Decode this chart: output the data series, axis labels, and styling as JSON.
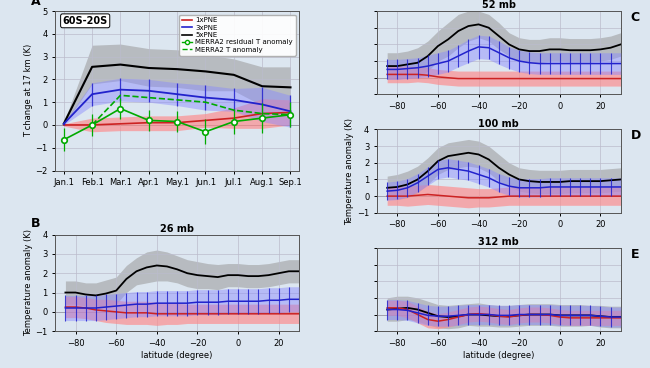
{
  "panel_A": {
    "title": "60S-20S",
    "ylabel": "T change at 17 km (K)",
    "xlim_labels": [
      "Jan.1",
      "Feb.1",
      "Mar.1",
      "Apr.1",
      "May.1",
      "Jun.1",
      "Jul.1",
      "Aug.1",
      "Sep.1"
    ],
    "ylim": [
      -2,
      5
    ],
    "yticks": [
      -2,
      -1,
      0,
      1,
      2,
      3,
      4,
      5
    ],
    "x": [
      0,
      1,
      2,
      3,
      4,
      5,
      6,
      7,
      8
    ],
    "gray_center": [
      0.05,
      2.55,
      2.65,
      2.5,
      2.45,
      2.35,
      2.2,
      1.7,
      1.65
    ],
    "gray_upper": [
      0.1,
      3.5,
      3.55,
      3.35,
      3.3,
      3.1,
      2.9,
      2.55,
      2.55
    ],
    "gray_lower": [
      0.0,
      1.8,
      1.95,
      1.7,
      1.65,
      1.5,
      1.5,
      0.85,
      0.7
    ],
    "blue_center": [
      0.05,
      1.35,
      1.55,
      1.5,
      1.35,
      1.2,
      1.1,
      0.9,
      0.6
    ],
    "blue_upper": [
      0.1,
      1.85,
      2.05,
      2.0,
      1.85,
      1.75,
      1.6,
      1.65,
      1.3
    ],
    "blue_lower": [
      0.0,
      0.85,
      1.05,
      1.0,
      0.85,
      0.65,
      0.6,
      0.15,
      -0.1
    ],
    "red_center": [
      0.0,
      0.0,
      0.05,
      0.1,
      0.1,
      0.2,
      0.3,
      0.5,
      0.55
    ],
    "red_upper": [
      0.05,
      0.3,
      0.35,
      0.4,
      0.4,
      0.5,
      0.75,
      1.15,
      1.1
    ],
    "red_lower": [
      -0.05,
      -0.3,
      -0.25,
      -0.25,
      -0.25,
      -0.1,
      -0.15,
      -0.15,
      0.0
    ],
    "green_solid_x": [
      0,
      1,
      2,
      3,
      4,
      5,
      6,
      7,
      8
    ],
    "green_solid_y": [
      -0.65,
      0.0,
      0.72,
      0.2,
      0.15,
      -0.3,
      0.15,
      0.3,
      0.45
    ],
    "green_solid_err": [
      0.5,
      0.5,
      0.45,
      0.45,
      0.45,
      0.55,
      0.55,
      0.65,
      0.55
    ],
    "green_dashed_x": [
      1,
      2,
      3,
      4,
      5,
      6,
      7,
      8
    ],
    "green_dashed_y": [
      0.0,
      1.3,
      1.2,
      1.1,
      1.0,
      0.65,
      0.5,
      0.45
    ]
  },
  "panel_B": {
    "title": "26 mb",
    "lat": [
      -85,
      -80,
      -75,
      -70,
      -65,
      -60,
      -55,
      -50,
      -45,
      -40,
      -35,
      -30,
      -25,
      -20,
      -15,
      -10,
      -5,
      0,
      5,
      10,
      15,
      20,
      25,
      30
    ],
    "gray_center": [
      1.0,
      1.0,
      0.9,
      0.85,
      0.95,
      1.1,
      1.7,
      2.1,
      2.3,
      2.4,
      2.35,
      2.2,
      2.0,
      1.9,
      1.85,
      1.8,
      1.9,
      1.9,
      1.85,
      1.85,
      1.9,
      2.0,
      2.1,
      2.1
    ],
    "gray_upper": [
      1.6,
      1.6,
      1.5,
      1.5,
      1.65,
      1.8,
      2.4,
      2.8,
      3.1,
      3.2,
      3.1,
      2.9,
      2.7,
      2.6,
      2.5,
      2.45,
      2.5,
      2.5,
      2.45,
      2.45,
      2.5,
      2.6,
      2.7,
      2.7
    ],
    "gray_lower": [
      0.4,
      0.4,
      0.3,
      0.2,
      0.25,
      0.4,
      1.0,
      1.4,
      1.5,
      1.6,
      1.6,
      1.5,
      1.3,
      1.2,
      1.2,
      1.15,
      1.3,
      1.3,
      1.25,
      1.25,
      1.3,
      1.4,
      1.5,
      1.5
    ],
    "blue_center": [
      0.2,
      0.2,
      0.2,
      0.2,
      0.25,
      0.3,
      0.35,
      0.4,
      0.4,
      0.45,
      0.45,
      0.45,
      0.45,
      0.5,
      0.5,
      0.5,
      0.55,
      0.55,
      0.55,
      0.55,
      0.6,
      0.6,
      0.65,
      0.65
    ],
    "blue_upper": [
      0.85,
      0.85,
      0.85,
      0.85,
      0.9,
      0.95,
      1.0,
      1.05,
      1.05,
      1.1,
      1.1,
      1.1,
      1.1,
      1.15,
      1.15,
      1.15,
      1.2,
      1.2,
      1.2,
      1.2,
      1.25,
      1.25,
      1.3,
      1.3
    ],
    "blue_lower": [
      -0.45,
      -0.45,
      -0.45,
      -0.45,
      -0.4,
      -0.35,
      -0.3,
      -0.25,
      -0.25,
      -0.2,
      -0.2,
      -0.2,
      -0.2,
      -0.15,
      -0.15,
      -0.15,
      -0.1,
      -0.1,
      -0.1,
      -0.1,
      -0.05,
      -0.05,
      0.0,
      0.0
    ],
    "red_center": [
      0.25,
      0.25,
      0.2,
      0.1,
      0.05,
      0.0,
      -0.05,
      -0.05,
      -0.05,
      -0.1,
      -0.1,
      -0.1,
      -0.1,
      -0.1,
      -0.1,
      -0.1,
      -0.1,
      -0.1,
      -0.1,
      -0.1,
      -0.1,
      -0.1,
      -0.1,
      -0.1
    ],
    "red_upper": [
      0.8,
      0.8,
      0.75,
      0.65,
      0.65,
      0.6,
      0.55,
      0.55,
      0.55,
      0.5,
      0.45,
      0.45,
      0.4,
      0.4,
      0.4,
      0.4,
      0.4,
      0.4,
      0.4,
      0.4,
      0.4,
      0.4,
      0.4,
      0.4
    ],
    "red_lower": [
      -0.3,
      -0.3,
      -0.35,
      -0.45,
      -0.55,
      -0.6,
      -0.65,
      -0.65,
      -0.65,
      -0.7,
      -0.65,
      -0.65,
      -0.6,
      -0.6,
      -0.6,
      -0.6,
      -0.6,
      -0.6,
      -0.6,
      -0.6,
      -0.6,
      -0.6,
      -0.6,
      -0.6
    ]
  },
  "panel_C": {
    "title": "52 mb",
    "lat": [
      -85,
      -80,
      -75,
      -70,
      -65,
      -60,
      -55,
      -50,
      -45,
      -40,
      -35,
      -30,
      -25,
      -20,
      -15,
      -10,
      -5,
      0,
      5,
      10,
      15,
      20,
      25,
      30
    ],
    "gray_center": [
      0.7,
      0.7,
      0.8,
      0.9,
      1.3,
      1.9,
      2.3,
      2.8,
      3.1,
      3.2,
      3.0,
      2.5,
      2.0,
      1.7,
      1.6,
      1.6,
      1.7,
      1.7,
      1.65,
      1.65,
      1.65,
      1.7,
      1.8,
      2.0
    ],
    "gray_upper": [
      1.5,
      1.5,
      1.6,
      1.8,
      2.2,
      2.8,
      3.3,
      3.8,
      4.0,
      4.0,
      3.8,
      3.3,
      2.7,
      2.4,
      2.3,
      2.3,
      2.4,
      2.4,
      2.35,
      2.35,
      2.35,
      2.4,
      2.5,
      2.7
    ],
    "gray_lower": [
      -0.1,
      -0.1,
      0.0,
      0.0,
      0.4,
      1.0,
      1.3,
      1.8,
      2.2,
      2.4,
      2.2,
      1.7,
      1.3,
      1.0,
      0.9,
      0.9,
      1.0,
      1.0,
      0.95,
      0.95,
      0.95,
      1.0,
      1.1,
      1.3
    ],
    "blue_center": [
      0.5,
      0.5,
      0.55,
      0.6,
      0.7,
      0.85,
      1.0,
      1.3,
      1.6,
      1.85,
      1.8,
      1.5,
      1.2,
      1.0,
      0.9,
      0.85,
      0.85,
      0.85,
      0.85,
      0.85,
      0.85,
      0.85,
      0.85,
      0.85
    ],
    "blue_upper": [
      1.1,
      1.1,
      1.15,
      1.2,
      1.35,
      1.5,
      1.65,
      1.95,
      2.3,
      2.55,
      2.5,
      2.2,
      1.85,
      1.65,
      1.55,
      1.5,
      1.5,
      1.5,
      1.5,
      1.5,
      1.5,
      1.5,
      1.5,
      1.5
    ],
    "blue_lower": [
      -0.1,
      -0.1,
      -0.05,
      0.0,
      0.05,
      0.2,
      0.35,
      0.65,
      0.9,
      1.15,
      1.1,
      0.8,
      0.55,
      0.35,
      0.25,
      0.2,
      0.2,
      0.2,
      0.2,
      0.2,
      0.2,
      0.2,
      0.2,
      0.2
    ],
    "red_center": [
      0.2,
      0.2,
      0.2,
      0.2,
      0.15,
      0.05,
      0.0,
      -0.05,
      -0.05,
      -0.05,
      -0.05,
      -0.05,
      -0.05,
      -0.05,
      -0.05,
      -0.05,
      -0.05,
      -0.05,
      -0.05,
      -0.05,
      -0.05,
      -0.05,
      -0.05,
      -0.05
    ],
    "red_upper": [
      0.7,
      0.7,
      0.7,
      0.65,
      0.6,
      0.5,
      0.45,
      0.4,
      0.4,
      0.4,
      0.4,
      0.4,
      0.4,
      0.4,
      0.4,
      0.4,
      0.4,
      0.4,
      0.4,
      0.4,
      0.4,
      0.4,
      0.4,
      0.4
    ],
    "red_lower": [
      -0.3,
      -0.3,
      -0.3,
      -0.25,
      -0.3,
      -0.4,
      -0.45,
      -0.5,
      -0.5,
      -0.5,
      -0.5,
      -0.5,
      -0.5,
      -0.5,
      -0.5,
      -0.5,
      -0.5,
      -0.5,
      -0.5,
      -0.5,
      -0.5,
      -0.5,
      -0.5,
      -0.5
    ]
  },
  "panel_D": {
    "title": "100 mb",
    "lat": [
      -85,
      -80,
      -75,
      -70,
      -65,
      -60,
      -55,
      -50,
      -45,
      -40,
      -35,
      -30,
      -25,
      -20,
      -15,
      -10,
      -5,
      0,
      5,
      10,
      15,
      20,
      25,
      30
    ],
    "gray_center": [
      0.5,
      0.55,
      0.7,
      1.0,
      1.5,
      2.1,
      2.4,
      2.5,
      2.6,
      2.5,
      2.2,
      1.7,
      1.3,
      1.0,
      0.9,
      0.85,
      0.85,
      0.85,
      0.9,
      0.9,
      0.9,
      0.9,
      0.95,
      1.0
    ],
    "gray_upper": [
      1.2,
      1.3,
      1.5,
      1.8,
      2.3,
      2.9,
      3.2,
      3.3,
      3.4,
      3.3,
      3.0,
      2.5,
      2.0,
      1.7,
      1.6,
      1.55,
      1.55,
      1.55,
      1.6,
      1.6,
      1.6,
      1.6,
      1.65,
      1.7
    ],
    "gray_lower": [
      -0.2,
      -0.2,
      -0.1,
      0.2,
      0.7,
      1.3,
      1.6,
      1.7,
      1.8,
      1.7,
      1.4,
      0.9,
      0.6,
      0.3,
      0.2,
      0.15,
      0.15,
      0.15,
      0.2,
      0.2,
      0.2,
      0.2,
      0.25,
      0.3
    ],
    "blue_center": [
      0.3,
      0.35,
      0.5,
      0.8,
      1.2,
      1.6,
      1.7,
      1.6,
      1.5,
      1.3,
      1.1,
      0.8,
      0.6,
      0.5,
      0.5,
      0.5,
      0.55,
      0.55,
      0.55,
      0.55,
      0.55,
      0.55,
      0.55,
      0.55
    ],
    "blue_upper": [
      0.85,
      0.9,
      1.05,
      1.35,
      1.75,
      2.15,
      2.25,
      2.15,
      2.05,
      1.85,
      1.65,
      1.35,
      1.15,
      1.05,
      1.05,
      1.05,
      1.1,
      1.1,
      1.1,
      1.1,
      1.1,
      1.1,
      1.1,
      1.1
    ],
    "blue_lower": [
      -0.25,
      -0.2,
      -0.05,
      0.25,
      0.65,
      1.05,
      1.15,
      1.05,
      0.95,
      0.75,
      0.55,
      0.25,
      0.05,
      -0.05,
      -0.05,
      -0.05,
      0.0,
      0.0,
      0.0,
      0.0,
      0.0,
      0.0,
      0.0,
      0.0
    ],
    "red_center": [
      0.0,
      0.0,
      0.0,
      0.05,
      0.1,
      0.05,
      0.0,
      -0.05,
      -0.1,
      -0.1,
      -0.1,
      -0.05,
      0.0,
      0.0,
      0.0,
      0.0,
      0.0,
      0.0,
      0.0,
      0.0,
      0.0,
      0.0,
      0.0,
      0.0
    ],
    "red_upper": [
      0.55,
      0.55,
      0.6,
      0.65,
      0.7,
      0.65,
      0.6,
      0.55,
      0.5,
      0.45,
      0.45,
      0.5,
      0.55,
      0.55,
      0.55,
      0.55,
      0.55,
      0.55,
      0.55,
      0.55,
      0.55,
      0.55,
      0.55,
      0.55
    ],
    "red_lower": [
      -0.55,
      -0.55,
      -0.6,
      -0.55,
      -0.5,
      -0.55,
      -0.6,
      -0.65,
      -0.7,
      -0.65,
      -0.65,
      -0.6,
      -0.55,
      -0.55,
      -0.55,
      -0.55,
      -0.55,
      -0.55,
      -0.55,
      -0.55,
      -0.55,
      -0.55,
      -0.55,
      -0.55
    ]
  },
  "panel_E": {
    "title": "312 mb",
    "lat": [
      -85,
      -80,
      -75,
      -70,
      -65,
      -60,
      -55,
      -50,
      -45,
      -40,
      -35,
      -30,
      -25,
      -20,
      -15,
      -10,
      -5,
      0,
      5,
      10,
      15,
      20,
      25,
      30
    ],
    "gray_center": [
      0.3,
      0.35,
      0.4,
      0.3,
      0.1,
      -0.1,
      -0.15,
      -0.1,
      0.0,
      0.0,
      -0.05,
      -0.1,
      -0.1,
      -0.05,
      0.0,
      0.0,
      0.0,
      -0.05,
      -0.05,
      -0.05,
      -0.05,
      -0.1,
      -0.15,
      -0.15
    ],
    "gray_upper": [
      1.0,
      1.1,
      1.1,
      1.0,
      0.8,
      0.6,
      0.55,
      0.6,
      0.65,
      0.7,
      0.6,
      0.55,
      0.55,
      0.6,
      0.65,
      0.65,
      0.65,
      0.6,
      0.6,
      0.6,
      0.55,
      0.55,
      0.5,
      0.5
    ],
    "gray_lower": [
      -0.4,
      -0.4,
      -0.3,
      -0.4,
      -0.6,
      -0.8,
      -0.85,
      -0.8,
      -0.65,
      -0.7,
      -0.7,
      -0.75,
      -0.75,
      -0.7,
      -0.65,
      -0.65,
      -0.65,
      -0.7,
      -0.7,
      -0.7,
      -0.65,
      -0.75,
      -0.8,
      -0.8
    ],
    "blue_center": [
      0.3,
      0.3,
      0.25,
      0.1,
      -0.05,
      -0.1,
      -0.1,
      -0.05,
      0.0,
      0.0,
      0.0,
      -0.05,
      -0.05,
      0.0,
      0.0,
      0.0,
      0.0,
      -0.05,
      -0.05,
      -0.05,
      -0.05,
      -0.1,
      -0.15,
      -0.15
    ],
    "blue_upper": [
      0.9,
      0.9,
      0.85,
      0.7,
      0.55,
      0.5,
      0.5,
      0.55,
      0.6,
      0.6,
      0.6,
      0.55,
      0.55,
      0.6,
      0.6,
      0.6,
      0.6,
      0.55,
      0.55,
      0.55,
      0.55,
      0.5,
      0.45,
      0.45
    ],
    "blue_lower": [
      -0.3,
      -0.3,
      -0.35,
      -0.5,
      -0.65,
      -0.7,
      -0.7,
      -0.65,
      -0.6,
      -0.6,
      -0.6,
      -0.65,
      -0.65,
      -0.6,
      -0.6,
      -0.6,
      -0.6,
      -0.65,
      -0.65,
      -0.65,
      -0.65,
      -0.7,
      -0.75,
      -0.75
    ],
    "red_center": [
      0.4,
      0.4,
      0.3,
      0.0,
      -0.3,
      -0.4,
      -0.3,
      -0.15,
      0.0,
      0.05,
      0.0,
      -0.1,
      -0.15,
      -0.05,
      0.0,
      0.0,
      -0.05,
      -0.15,
      -0.2,
      -0.2,
      -0.2,
      -0.2,
      -0.2,
      -0.2
    ],
    "red_upper": [
      0.85,
      0.85,
      0.8,
      0.5,
      0.2,
      0.05,
      0.15,
      0.3,
      0.45,
      0.5,
      0.45,
      0.35,
      0.3,
      0.4,
      0.45,
      0.45,
      0.4,
      0.3,
      0.25,
      0.25,
      0.25,
      0.25,
      0.25,
      0.25
    ],
    "red_lower": [
      -0.05,
      -0.05,
      -0.2,
      -0.5,
      -0.8,
      -0.85,
      -0.75,
      -0.6,
      -0.45,
      -0.4,
      -0.45,
      -0.55,
      -0.6,
      -0.5,
      -0.45,
      -0.45,
      -0.5,
      -0.6,
      -0.65,
      -0.65,
      -0.65,
      -0.65,
      -0.65,
      -0.65
    ]
  },
  "colors": {
    "gray_fill": "#999999",
    "gray_line": "#000000",
    "blue_fill": "#8888ff",
    "blue_line": "#2222cc",
    "red_fill": "#ff8888",
    "red_line": "#cc2222",
    "green_solid": "#00aa00",
    "green_dashed": "#00aa00"
  },
  "bg_color": "#dce6f0",
  "legend_labels": [
    "1xPNE",
    "3xPNE",
    "5xPNE",
    "MERRA2 residual T anomaly",
    "MERRA2 T anomaly"
  ],
  "lat_xlim": [
    -90,
    30
  ],
  "lat_xticks": [
    -80,
    -60,
    -40,
    -20,
    0,
    20
  ],
  "lat_ylim": [
    -1,
    4
  ],
  "lat_yticks": [
    -1,
    0,
    1,
    2,
    3,
    4
  ],
  "xlabel": "latitude (degree)",
  "ylabel_lat": "Temperature anomaly (K)",
  "panel_letters": [
    "A",
    "B",
    "C",
    "D",
    "E"
  ]
}
